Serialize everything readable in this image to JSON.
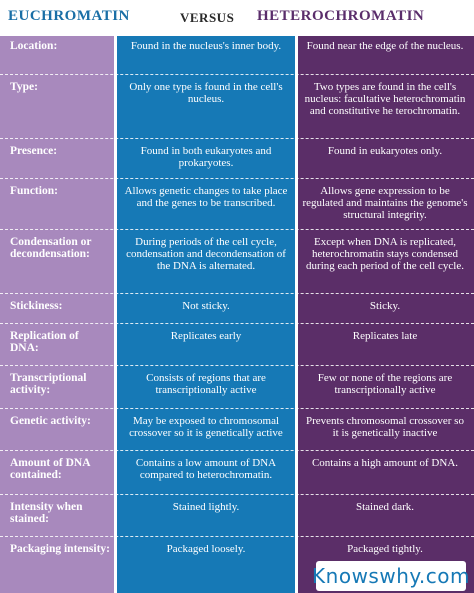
{
  "header": {
    "left_title": "EUCHROMATIN",
    "versus": "VERSUS",
    "right_title": "HETEROCHROMATIN"
  },
  "colors": {
    "label_column": "#a889bd",
    "euchromatin_column": "#1679b6",
    "heterochromatin_column": "#5b2e68"
  },
  "rows": [
    {
      "label": "Location:",
      "eu": "Found in the nucleus's inner body.",
      "het": "Found near the edge of the nucleus."
    },
    {
      "label": "Type:",
      "eu": "Only one type is found in the cell's nucleus.",
      "het": "Two types are found in the cell's nucleus: facultative heterochromatin and constitutive he terochromatin."
    },
    {
      "label": "Presence:",
      "eu": "Found in both eukaryotes and prokaryotes.",
      "het": "Found in eukaryotes only."
    },
    {
      "label": "Function:",
      "eu": "Allows genetic changes to take place and the genes to be transcribed.",
      "het": "Allows gene expression to be regulated and maintains the genome's structural integrity."
    },
    {
      "label": "Condensation or decondensation:",
      "eu": "During periods of the cell cycle, condensation and decondensation of the DNA is alternated.",
      "het": "Except when DNA is replicated, heterochromatin stays condensed during each period of the cell cycle."
    },
    {
      "label": "Stickiness:",
      "eu": "Not sticky.",
      "het": "Sticky."
    },
    {
      "label": "Replication of DNA:",
      "eu": "Replicates early",
      "het": "Replicates late"
    },
    {
      "label": "Transcriptional activity:",
      "eu": "Consists of regions that are transcriptionally active",
      "het": "Few or none of the regions are transcriptionally active"
    },
    {
      "label": "Genetic activity:",
      "eu": "May be exposed to chromosomal crossover so it is genetically active",
      "het": "Prevents chromosomal crossover so it is genetically inactive"
    },
    {
      "label": "Amount of DNA contained:",
      "eu": "Contains a low amount of DNA compared to heterochromatin.",
      "het": "Contains a high amount of DNA."
    },
    {
      "label": "Intensity when stained:",
      "eu": "Stained lightly.",
      "het": "Stained dark."
    },
    {
      "label": "Packaging intensity:",
      "eu": "Packaged loosely.",
      "het": "Packaged tightly."
    }
  ],
  "brand": "Knowswhy.com"
}
